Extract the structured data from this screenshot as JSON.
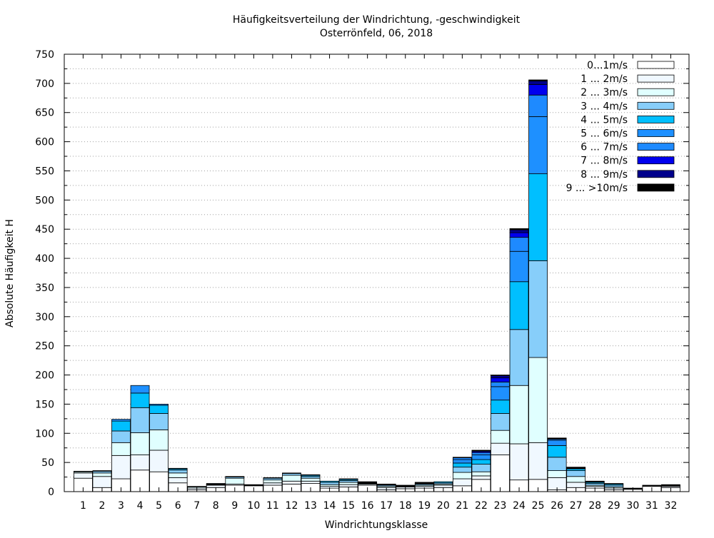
{
  "chart_data": {
    "type": "bar",
    "stacked": true,
    "title": "Häufigkeitsverteilung der Windrichtung, -geschwindigkeit",
    "subtitle": "Osterrönfeld, 06, 2018",
    "xlabel": "Windrichtungsklasse",
    "ylabel": "Absolute Häufigkeit H",
    "ylim": [
      0,
      750
    ],
    "yticks": [
      0,
      50,
      100,
      150,
      200,
      250,
      300,
      350,
      400,
      450,
      500,
      550,
      600,
      650,
      700,
      750
    ],
    "grid": true,
    "legend_position": "top-right",
    "categories": [
      "1",
      "2",
      "3",
      "4",
      "5",
      "6",
      "7",
      "8",
      "9",
      "10",
      "11",
      "12",
      "13",
      "14",
      "15",
      "16",
      "17",
      "18",
      "19",
      "20",
      "21",
      "22",
      "23",
      "24",
      "25",
      "26",
      "27",
      "28",
      "29",
      "30",
      "31",
      "32"
    ],
    "series": [
      {
        "name": "0...1m/s",
        "color": "#ffffff",
        "values": [
          23,
          7,
          22,
          37,
          34,
          15,
          3,
          7,
          11,
          10,
          11,
          13,
          14,
          6,
          8,
          11,
          3,
          5,
          6,
          7,
          10,
          21,
          63,
          20,
          21,
          3,
          7,
          6,
          3,
          4,
          9,
          7
        ]
      },
      {
        "name": "1 ... 2m/s",
        "color": "#f0f8ff",
        "values": [
          9,
          19,
          40,
          26,
          37,
          9,
          3,
          4,
          2,
          1,
          4,
          5,
          4,
          3,
          4,
          2,
          4,
          3,
          3,
          4,
          12,
          6,
          20,
          62,
          63,
          21,
          9,
          3,
          3,
          1,
          1,
          2
        ]
      },
      {
        "name": "2 ... 3m/s",
        "color": "#e0ffff",
        "values": [
          2,
          6,
          22,
          38,
          35,
          8,
          2,
          1,
          10,
          0,
          5,
          10,
          5,
          3,
          4,
          1,
          2,
          1,
          2,
          2,
          11,
          7,
          22,
          100,
          146,
          12,
          10,
          2,
          2,
          0,
          1,
          1
        ]
      },
      {
        "name": "3 ... 4m/s",
        "color": "#87cefa",
        "values": [
          1,
          3,
          20,
          43,
          28,
          5,
          1,
          1,
          2,
          0,
          3,
          3,
          3,
          4,
          3,
          1,
          2,
          1,
          2,
          2,
          9,
          13,
          29,
          96,
          166,
          23,
          10,
          3,
          3,
          0,
          0,
          1
        ]
      },
      {
        "name": "4 ... 5m/s",
        "color": "#00bfff",
        "values": [
          0,
          1,
          17,
          25,
          14,
          2,
          0,
          1,
          1,
          0,
          1,
          1,
          2,
          2,
          2,
          0,
          1,
          0,
          1,
          2,
          7,
          8,
          23,
          82,
          149,
          20,
          3,
          2,
          2,
          0,
          0,
          0
        ]
      },
      {
        "name": "5 ... 6m/s",
        "color": "#1e90ff",
        "values": [
          0,
          0,
          3,
          13,
          2,
          1,
          0,
          0,
          0,
          0,
          0,
          0,
          1,
          0,
          1,
          0,
          0,
          0,
          0,
          0,
          6,
          8,
          23,
          52,
          98,
          9,
          1,
          1,
          0,
          0,
          0,
          0
        ]
      },
      {
        "name": "6 ... 7m/s",
        "color": "#1e8aff",
        "values": [
          0,
          0,
          0,
          0,
          0,
          0,
          0,
          0,
          0,
          0,
          0,
          0,
          0,
          0,
          0,
          0,
          0,
          0,
          0,
          0,
          3,
          4,
          8,
          24,
          37,
          2,
          1,
          0,
          0,
          0,
          0,
          0
        ]
      },
      {
        "name": "7 ... 8m/s",
        "color": "#0000ee",
        "values": [
          0,
          0,
          0,
          0,
          0,
          0,
          0,
          0,
          0,
          0,
          0,
          0,
          0,
          0,
          0,
          0,
          0,
          0,
          0,
          0,
          1,
          2,
          7,
          8,
          18,
          1,
          0,
          0,
          0,
          0,
          0,
          0
        ]
      },
      {
        "name": "8 ... 9m/s",
        "color": "#00008b",
        "values": [
          0,
          0,
          0,
          0,
          0,
          0,
          0,
          0,
          0,
          0,
          0,
          0,
          0,
          0,
          0,
          0,
          0,
          0,
          0,
          0,
          0,
          1,
          4,
          5,
          6,
          1,
          0,
          0,
          0,
          0,
          0,
          0
        ]
      },
      {
        "name": "9 ... >10m/s",
        "color": "#000000",
        "values": [
          0,
          0,
          0,
          0,
          0,
          0,
          0,
          0,
          0,
          1,
          0,
          0,
          0,
          0,
          0,
          2,
          1,
          1,
          2,
          0,
          0,
          1,
          1,
          2,
          2,
          0,
          1,
          1,
          1,
          1,
          0,
          1
        ]
      }
    ]
  }
}
